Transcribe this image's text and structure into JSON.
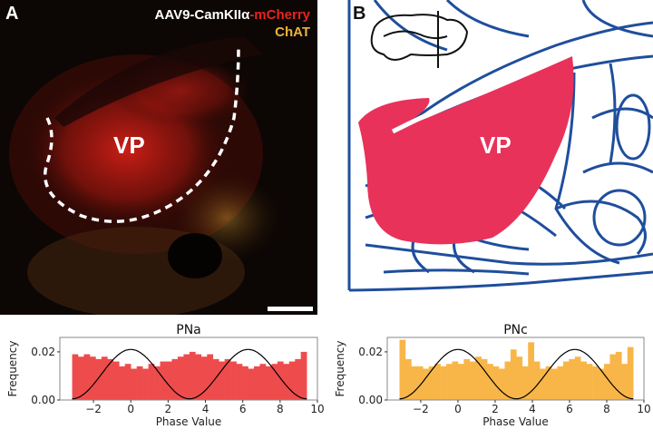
{
  "panel_a": {
    "letter": "A",
    "legend_line1_white": "AAV9-CamKIIα",
    "legend_line1_red": "-mCherry",
    "legend_line2": "ChAT",
    "region_label": "VP",
    "colors": {
      "mcherry": "#e8231e",
      "chat": "#e8b43c"
    }
  },
  "panel_b": {
    "letter": "B",
    "region_label": "VP",
    "colors": {
      "outline": "#1f4e9c",
      "region": "#e8325a"
    }
  },
  "chart_data": [
    {
      "type": "bar",
      "title": "PNa",
      "xlabel": "Phase Value",
      "ylabel": "Frequency",
      "xlim": [
        -3.8,
        10
      ],
      "ylim": [
        0,
        0.026
      ],
      "xticks": [
        -2,
        0,
        2,
        4,
        6,
        8,
        10
      ],
      "yticks": [
        "0.00",
        "0.02"
      ],
      "color": "#ee4c4c",
      "bin_range": [
        -3.1416,
        9.4248
      ],
      "values": [
        0.019,
        0.018,
        0.019,
        0.018,
        0.017,
        0.018,
        0.017,
        0.016,
        0.014,
        0.015,
        0.013,
        0.014,
        0.013,
        0.015,
        0.014,
        0.016,
        0.016,
        0.017,
        0.018,
        0.019,
        0.02,
        0.019,
        0.018,
        0.019,
        0.017,
        0.016,
        0.017,
        0.016,
        0.015,
        0.014,
        0.013,
        0.014,
        0.015,
        0.014,
        0.015,
        0.016,
        0.015,
        0.016,
        0.017,
        0.02
      ],
      "overlay": {
        "type": "line",
        "function": "cosine",
        "peak": 0.021,
        "trough": 0.0005,
        "color": "#000000"
      }
    },
    {
      "type": "bar",
      "title": "PNc",
      "xlabel": "Phase Value",
      "ylabel": "Frequency",
      "xlim": [
        -3.8,
        10
      ],
      "ylim": [
        0,
        0.026
      ],
      "xticks": [
        -2,
        0,
        2,
        4,
        6,
        8,
        10
      ],
      "yticks": [
        "0.00",
        "0.02"
      ],
      "color": "#f8b648",
      "bin_range": [
        -3.1416,
        9.4248
      ],
      "values": [
        0.025,
        0.017,
        0.014,
        0.014,
        0.013,
        0.014,
        0.015,
        0.014,
        0.015,
        0.016,
        0.015,
        0.017,
        0.016,
        0.018,
        0.017,
        0.015,
        0.014,
        0.013,
        0.016,
        0.021,
        0.018,
        0.014,
        0.024,
        0.016,
        0.013,
        0.014,
        0.013,
        0.014,
        0.016,
        0.017,
        0.018,
        0.016,
        0.015,
        0.014,
        0.013,
        0.015,
        0.019,
        0.02,
        0.015,
        0.022
      ],
      "overlay": {
        "type": "line",
        "function": "cosine",
        "peak": 0.021,
        "trough": 0.0005,
        "color": "#000000"
      }
    }
  ]
}
